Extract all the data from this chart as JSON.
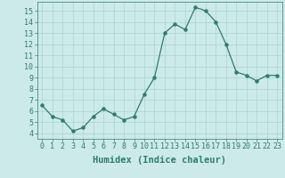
{
  "x": [
    0,
    1,
    2,
    3,
    4,
    5,
    6,
    7,
    8,
    9,
    10,
    11,
    12,
    13,
    14,
    15,
    16,
    17,
    18,
    19,
    20,
    21,
    22,
    23
  ],
  "y": [
    6.5,
    5.5,
    5.2,
    4.2,
    4.5,
    5.5,
    6.2,
    5.7,
    5.2,
    5.5,
    7.5,
    9.0,
    13.0,
    13.8,
    13.3,
    15.3,
    15.0,
    14.0,
    12.0,
    9.5,
    9.2,
    8.7,
    9.2,
    9.2
  ],
  "xlabel": "Humidex (Indice chaleur)",
  "xlim": [
    -0.5,
    23.5
  ],
  "ylim": [
    3.5,
    15.8
  ],
  "yticks": [
    4,
    5,
    6,
    7,
    8,
    9,
    10,
    11,
    12,
    13,
    14,
    15
  ],
  "xticks": [
    0,
    1,
    2,
    3,
    4,
    5,
    6,
    7,
    8,
    9,
    10,
    11,
    12,
    13,
    14,
    15,
    16,
    17,
    18,
    19,
    20,
    21,
    22,
    23
  ],
  "line_color": "#2d7d6e",
  "bg_color": "#cceae8",
  "grid_color": "#aad4d0",
  "xlabel_fontsize": 7.5,
  "tick_fontsize": 6.0
}
